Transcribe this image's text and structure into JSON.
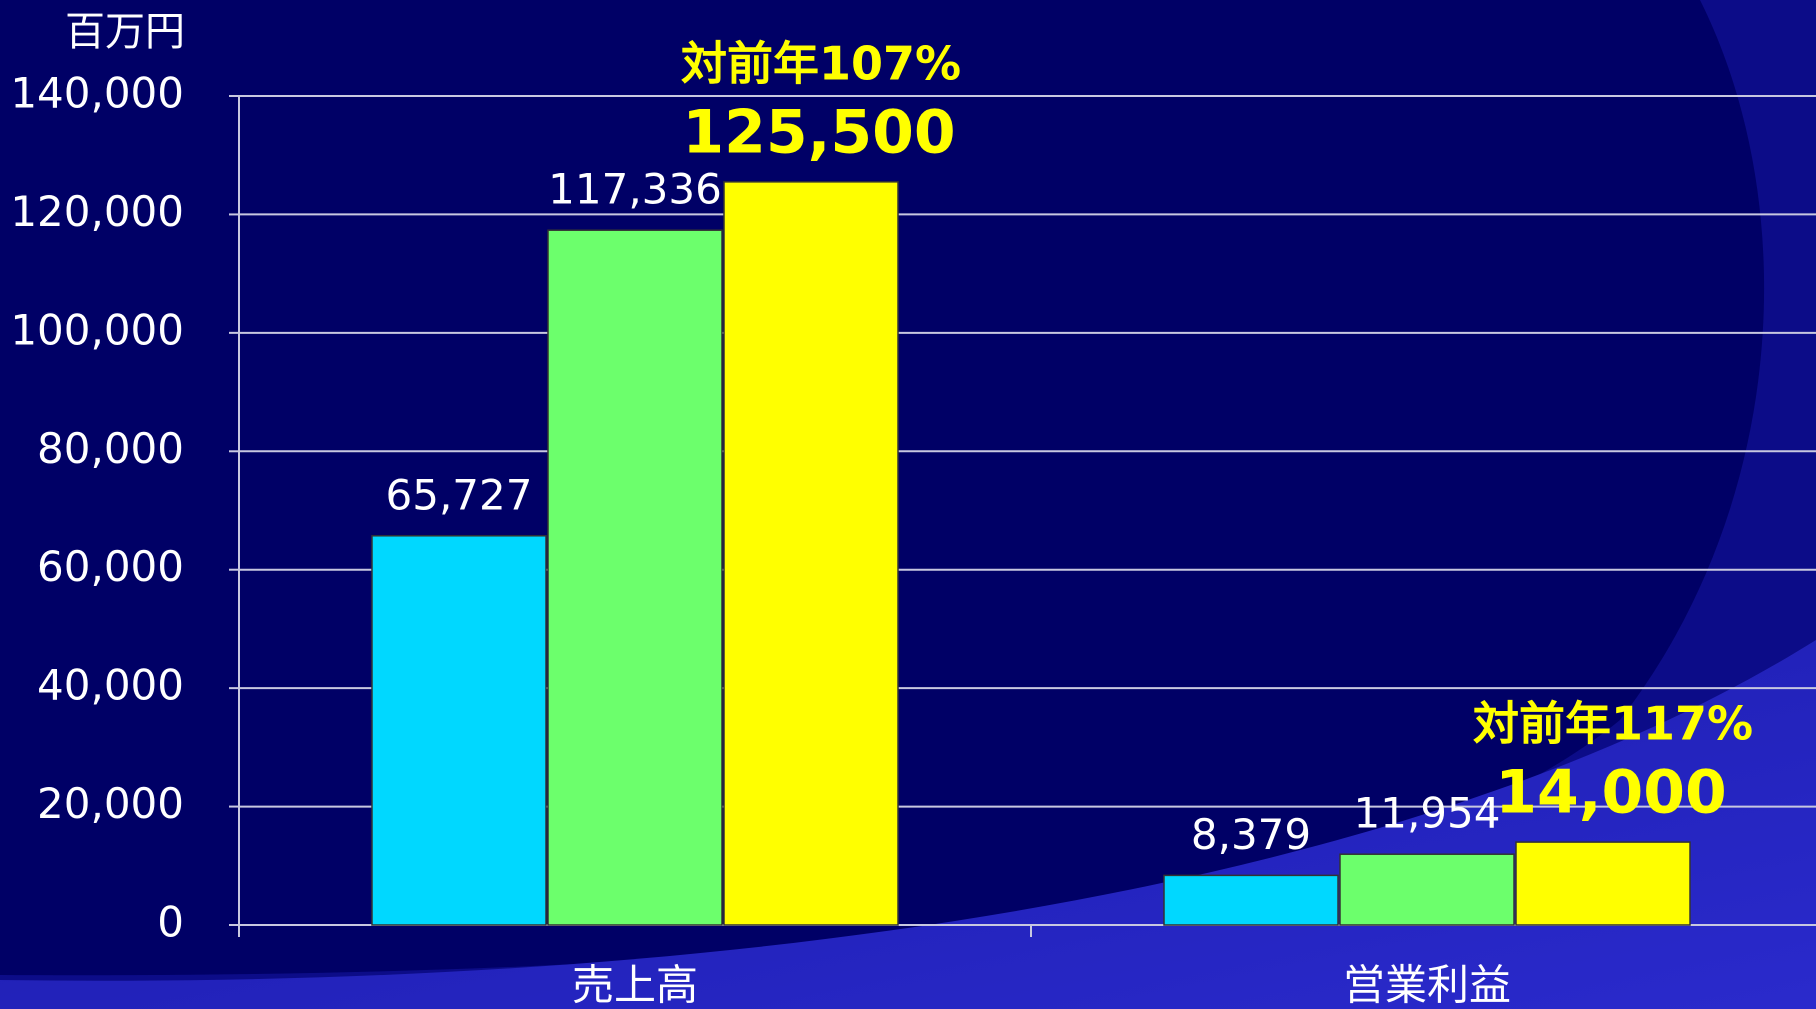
{
  "chart_data": {
    "type": "bar",
    "y_label": "百万円",
    "categories": [
      "売上高",
      "営業利益"
    ],
    "series": [
      {
        "color": "#00d8ff",
        "values": [
          65727,
          8379
        ],
        "value_labels": [
          "65,727",
          "8,379"
        ]
      },
      {
        "color": "#6cff6c",
        "values": [
          117336,
          11954
        ],
        "value_labels": [
          "117,336",
          "11,954"
        ]
      },
      {
        "color": "#ffff00",
        "values": [
          125500,
          14000
        ],
        "value_labels": [
          "125,500",
          "14,000"
        ]
      }
    ],
    "annotations": [
      "対前年107%",
      "対前年117%"
    ],
    "ylim": [
      0,
      140000
    ],
    "yticks": [
      0,
      {
        "value": 20000,
        "label": "20,000"
      },
      {
        "value": 40000,
        "label": "40,000"
      },
      {
        "value": 60000,
        "label": "60,000"
      },
      {
        "value": 80000,
        "label": "80,000"
      },
      {
        "value": 100000,
        "label": "100,000"
      },
      {
        "value": 120000,
        "label": "120,000"
      },
      {
        "value": 140000,
        "label": "140,000"
      }
    ],
    "grid": true
  }
}
